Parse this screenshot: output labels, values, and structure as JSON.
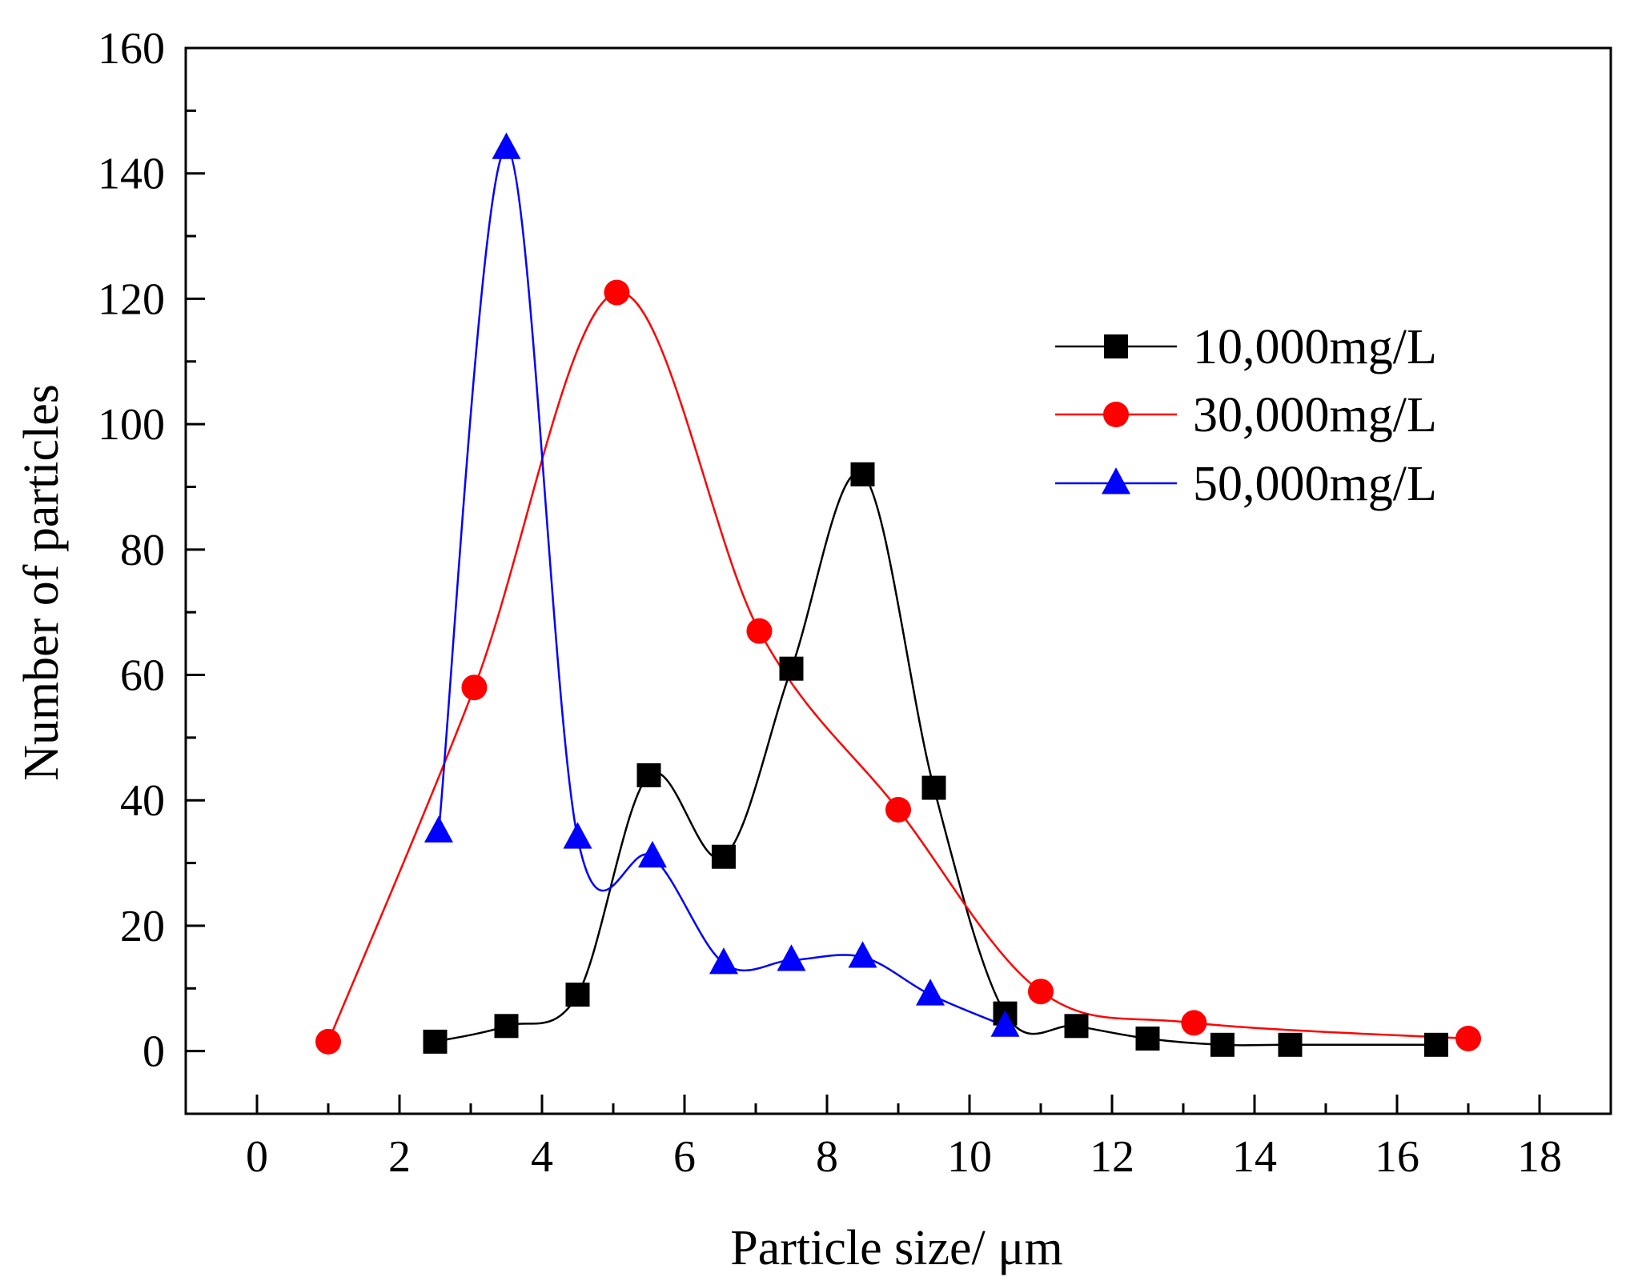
{
  "chart_data": {
    "type": "line",
    "title": "",
    "xlabel": "Particle size/ μm",
    "ylabel": "Number of particles",
    "xlim": [
      -1,
      19
    ],
    "ylim": [
      -10,
      160
    ],
    "xticks": [
      0,
      2,
      4,
      6,
      8,
      10,
      12,
      14,
      16,
      18
    ],
    "yticks": [
      0,
      20,
      40,
      60,
      80,
      100,
      120,
      140,
      160
    ],
    "xtick_labels": [
      "0",
      "2",
      "4",
      "6",
      "8",
      "10",
      "12",
      "14",
      "16",
      "18"
    ],
    "ytick_labels": [
      "0",
      "20",
      "40",
      "60",
      "80",
      "100",
      "120",
      "140",
      "160"
    ],
    "grid": false,
    "legend_position": "upper-right",
    "series": [
      {
        "name": "10,000mg/L",
        "color": "#000000",
        "marker": "square",
        "x": [
          2.5,
          3.5,
          4.5,
          5.5,
          6.55,
          7.5,
          8.5,
          9.5,
          10.5,
          11.5,
          12.5,
          13.55,
          14.5,
          16.55
        ],
        "y": [
          1.5,
          4,
          9,
          44,
          31,
          61,
          92,
          42,
          6,
          4,
          2,
          1,
          1,
          1
        ]
      },
      {
        "name": "30,000mg/L",
        "color": "#ff0000",
        "marker": "circle",
        "x": [
          1.0,
          3.05,
          5.05,
          7.05,
          9.0,
          11.0,
          13.15,
          17.0
        ],
        "y": [
          1.5,
          58,
          121,
          67,
          38.5,
          9.5,
          4.5,
          2
        ]
      },
      {
        "name": "50,000mg/L",
        "color": "#0000ff",
        "marker": "triangle",
        "x": [
          2.55,
          3.5,
          4.5,
          5.55,
          6.55,
          7.5,
          8.5,
          9.45,
          10.5
        ],
        "y": [
          35,
          144,
          34,
          31,
          14,
          14.5,
          15,
          9,
          4
        ]
      }
    ]
  }
}
